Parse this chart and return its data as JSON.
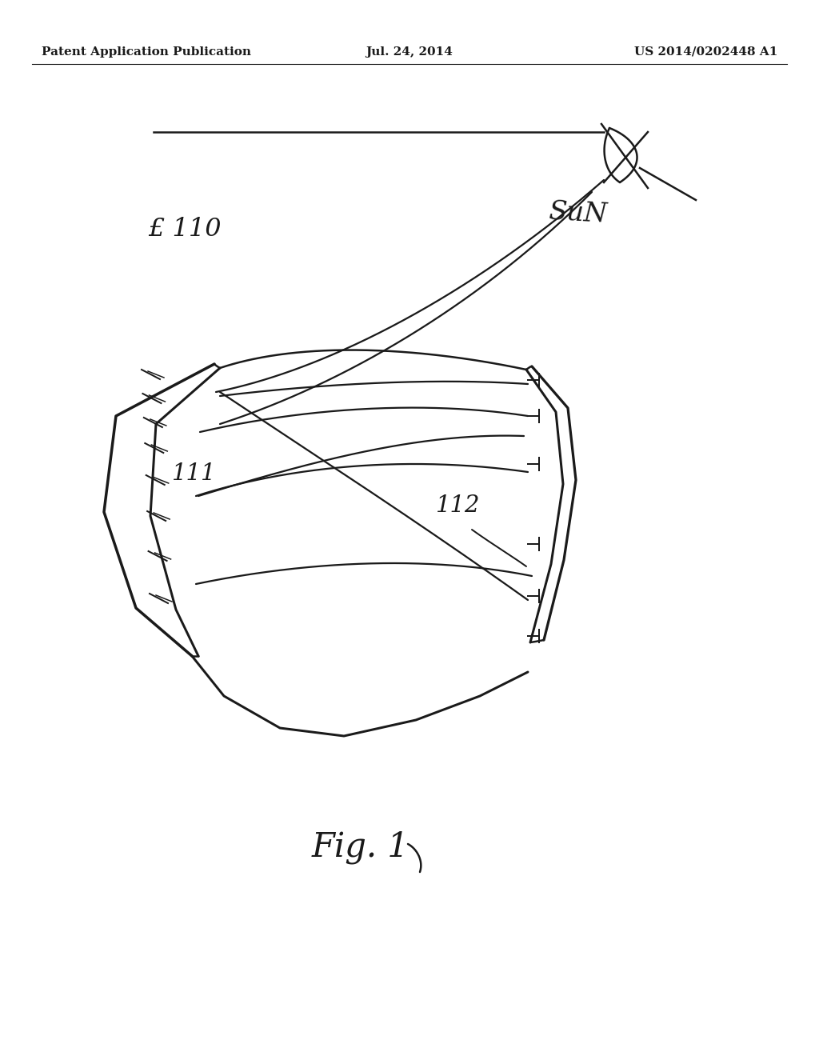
{
  "bg_color": "#ffffff",
  "line_color": "#1a1a1a",
  "header_left": "Patent Application Publication",
  "header_mid": "Jul. 24, 2014",
  "header_right": "US 2014/0202448 A1",
  "header_fontsize": 11,
  "fig_label": "Fig. 1",
  "label_110": "£ 110",
  "label_111": "111",
  "label_112": "112",
  "label_sun": "SuN"
}
